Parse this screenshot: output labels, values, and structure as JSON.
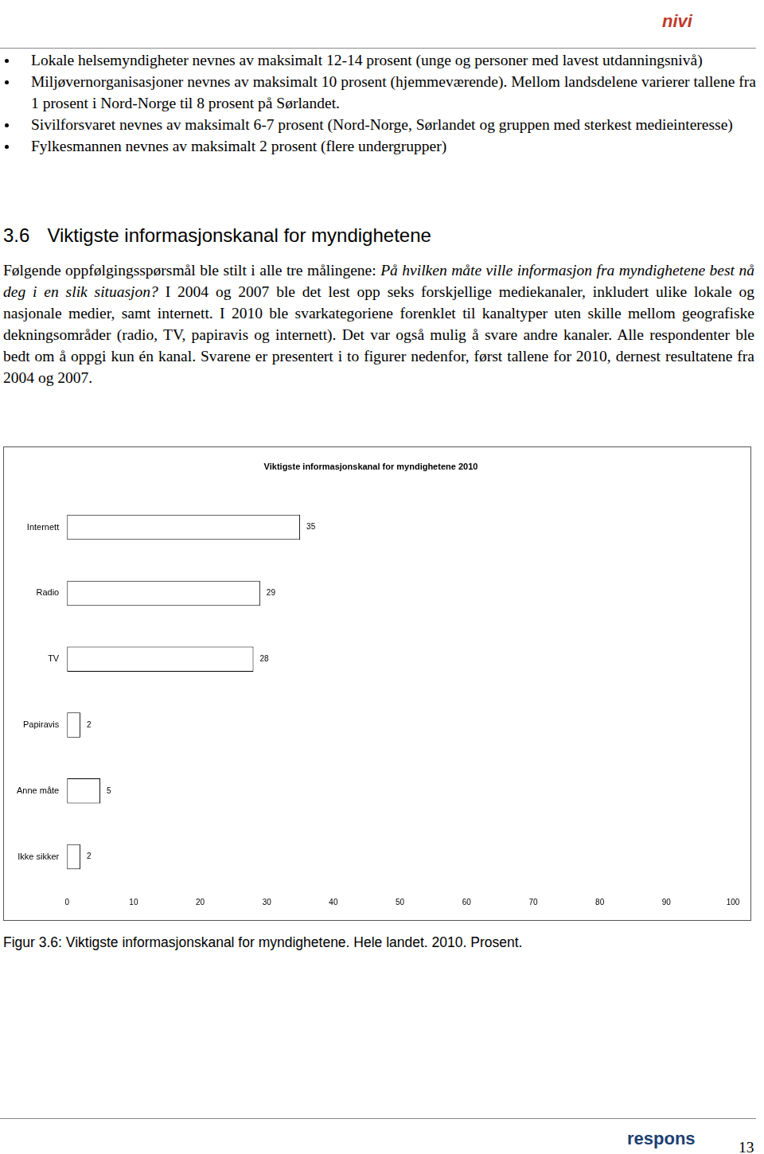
{
  "header": {
    "logo": "nivi"
  },
  "bullets": [
    "Lokale helsemyndigheter nevnes av maksimalt 12-14 prosent (unge og personer med lavest utdanningsnivå)",
    "Miljøvernorganisasjoner nevnes av maksimalt 10 prosent (hjemmeværende). Mellom landsdelene varierer tallene fra 1 prosent i Nord-Norge til 8 prosent på Sørlandet.",
    "Sivilforsvaret nevnes av maksimalt 6-7 prosent (Nord-Norge, Sørlandet og gruppen med sterkest medieinteresse)",
    "Fylkesmannen nevnes av maksimalt 2 prosent (flere undergrupper)"
  ],
  "section": {
    "number": "3.6",
    "title": "Viktigste informasjonskanal for myndighetene"
  },
  "paragraph": [
    {
      "text": "Følgende oppfølgingsspørsmål ble stilt i alle tre målingene: ",
      "italic": false
    },
    {
      "text": "På hvilken måte ville informasjon fra myndighetene best nå deg i en slik situasjon?",
      "italic": true
    },
    {
      "text": " I 2004 og 2007 ble det lest opp seks forskjellige mediekanaler, inkludert ulike lokale og nasjonale medier, samt internett. I 2010 ble svarkategoriene forenklet til kanaltyper uten skille mellom geografiske dekningsområder (radio, TV, papiravis og internett). Det var også mulig å svare andre kanaler. Alle respondenter ble bedt om å oppgi kun én kanal. Svarene er presentert i to figurer nedenfor, først tallene for 2010, dernest resultatene fra 2004 og 2007.",
      "italic": false
    }
  ],
  "chart_data": {
    "type": "bar",
    "orientation": "horizontal",
    "title": "Viktigste informasjonskanal for myndighetene 2010",
    "categories": [
      "Internett",
      "Radio",
      "TV",
      "Papiravis",
      "Anne måte",
      "Ikke sikker"
    ],
    "values": [
      35,
      29,
      28,
      2,
      5,
      2
    ],
    "color": "#ffffff",
    "xlim": [
      0,
      100
    ],
    "xticks": [
      0,
      10,
      20,
      30,
      40,
      50,
      60,
      70,
      80,
      90,
      100
    ],
    "grid": false,
    "data_labels": true
  },
  "caption": "Figur 3.6: Viktigste informasjonskanal for myndighetene. Hele landet. 2010. Prosent.",
  "footer": {
    "logo": "respons",
    "page": "13"
  }
}
